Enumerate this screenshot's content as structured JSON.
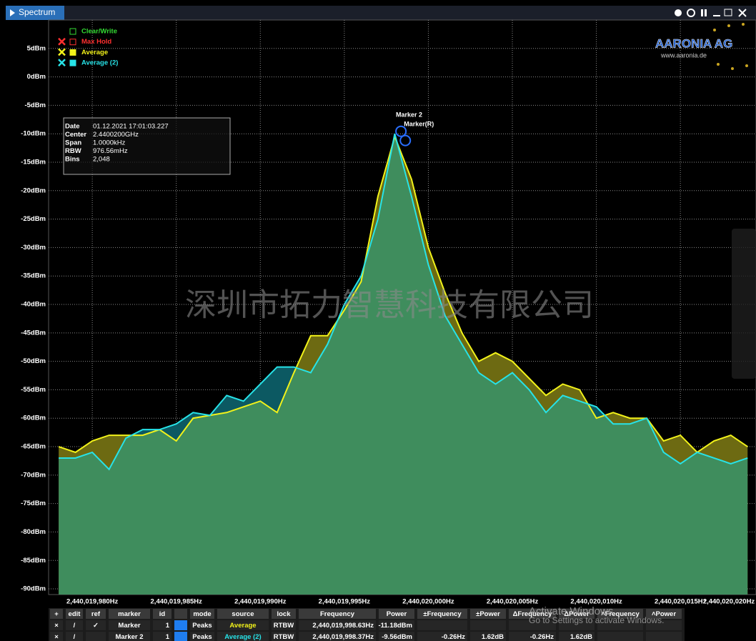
{
  "window_title": "Spectrum",
  "chart_data": {
    "type": "line",
    "x": [
      2440019978,
      2440019979,
      2440019980,
      2440019981,
      2440019982,
      2440019983,
      2440019984,
      2440019985,
      2440019986,
      2440019987,
      2440019988,
      2440019989,
      2440019990,
      2440019991,
      2440019992,
      2440019993,
      2440019994,
      2440019995,
      2440019996,
      2440019997,
      2440019998,
      2440019999,
      2440020000,
      2440020001,
      2440020002,
      2440020003,
      2440020004,
      2440020005,
      2440020006,
      2440020007,
      2440020008,
      2440020009,
      2440020010,
      2440020011,
      2440020012,
      2440020013,
      2440020014,
      2440020015,
      2440020016,
      2440020017,
      2440020018,
      2440020019
    ],
    "series": [
      {
        "name": "Average",
        "color": "#f2f21a",
        "values": [
          -65,
          -66,
          -64,
          -63,
          -63,
          -63,
          -62,
          -64,
          -60,
          -59.5,
          -59,
          -58,
          -57,
          -59,
          -52,
          -45.5,
          -45.5,
          -41,
          -36,
          -21,
          -10.5,
          -18,
          -30,
          -38,
          -45,
          -50,
          -48.5,
          -50,
          -53,
          -56,
          -54,
          -55,
          -60,
          -59,
          -60,
          -60,
          -64,
          -63,
          -66,
          -64,
          -63,
          -65
        ]
      },
      {
        "name": "Average (2)",
        "color": "#27e3e8",
        "values": [
          -67,
          -67,
          -66,
          -69,
          -63.5,
          -62,
          -62,
          -61,
          -59,
          -59.5,
          -56,
          -57,
          -54,
          -51,
          -51,
          -52,
          -47,
          -40,
          -35,
          -25,
          -10,
          -21,
          -33,
          -42,
          -47,
          -52,
          -54,
          -52,
          -55,
          -59,
          -56,
          -57,
          -58,
          -61,
          -61,
          -60,
          -66,
          -68,
          -66,
          -67,
          -68,
          -67
        ]
      }
    ],
    "inactive_traces": [
      {
        "name": "Clear/Write",
        "color": "#33dd33"
      },
      {
        "name": "Max Hold",
        "color": "#ff3030"
      }
    ],
    "xlim": [
      2440019977.4,
      2440020019.5
    ],
    "xticks": [
      {
        "value": 2440019980,
        "label": "2,440,019,980Hz"
      },
      {
        "value": 2440019985,
        "label": "2,440,019,985Hz"
      },
      {
        "value": 2440019990,
        "label": "2,440,019,990Hz"
      },
      {
        "value": 2440019995,
        "label": "2,440,019,995Hz"
      },
      {
        "value": 2440020000,
        "label": "2,440,020,000Hz"
      },
      {
        "value": 2440020005,
        "label": "2,440,020,005Hz"
      },
      {
        "value": 2440020010,
        "label": "2,440,020,010Hz"
      },
      {
        "value": 2440020015,
        "label": "2,440,020,015Hz"
      },
      {
        "value": 2440020020,
        "label": "2,440,020,020Hz"
      }
    ],
    "ylim": [
      -91,
      10
    ],
    "yticks": [
      {
        "value": 5,
        "label": "5dBm"
      },
      {
        "value": 0,
        "label": "0dBm"
      },
      {
        "value": -5,
        "label": "-5dBm"
      },
      {
        "value": -10,
        "label": "-10dBm"
      },
      {
        "value": -15,
        "label": "-15dBm"
      },
      {
        "value": -20,
        "label": "-20dBm"
      },
      {
        "value": -25,
        "label": "-25dBm"
      },
      {
        "value": -30,
        "label": "-30dBm"
      },
      {
        "value": -35,
        "label": "-35dBm"
      },
      {
        "value": -40,
        "label": "-40dBm"
      },
      {
        "value": -45,
        "label": "-45dBm"
      },
      {
        "value": -50,
        "label": "-50dBm"
      },
      {
        "value": -55,
        "label": "-55dBm"
      },
      {
        "value": -60,
        "label": "-60dBm"
      },
      {
        "value": -65,
        "label": "-65dBm"
      },
      {
        "value": -70,
        "label": "-70dBm"
      },
      {
        "value": -75,
        "label": "-75dBm"
      },
      {
        "value": -80,
        "label": "-80dBm"
      },
      {
        "value": -85,
        "label": "-85dBm"
      },
      {
        "value": -90,
        "label": "-90dBm"
      }
    ],
    "grid": true,
    "markers": [
      {
        "label": "Marker 2",
        "x": 2440019998.37,
        "y": -9.56
      },
      {
        "label": "Marker(R)",
        "x": 2440019998.63,
        "y": -11.18
      }
    ],
    "info": [
      [
        "Date",
        "01.12.2021 17:01:03.227"
      ],
      [
        "Center",
        "2.4400200GHz"
      ],
      [
        "Span",
        "1.0000kHz"
      ],
      [
        "RBW",
        "976.56mHz"
      ],
      [
        "Bins",
        "2,048"
      ]
    ]
  },
  "watermark": "深圳市拓力智慧科技有限公司",
  "logo": {
    "name": "AARONIA AG",
    "url": "www.aaronia.de"
  },
  "os_notice": [
    "Activate Windows",
    "Go to Settings to activate Windows."
  ],
  "table": {
    "header": [
      "+",
      "edit",
      "ref",
      "marker",
      "id",
      null,
      "mode",
      "source",
      "lock",
      "Frequency",
      "Power",
      "±Frequency",
      "±Power",
      "ΔFrequency",
      "ΔPower",
      "˄Frequency",
      "˄Power"
    ],
    "rows": [
      [
        "×",
        "/",
        "✓",
        "Marker",
        "1",
        null,
        "Peaks",
        "Average",
        "RTBW",
        "2,440,019,998.63Hz",
        "-11.18dBm",
        null,
        null,
        null,
        null,
        null,
        null
      ],
      [
        "×",
        "/",
        null,
        "Marker 2",
        "1",
        null,
        "Peaks",
        "Average (2)",
        "RTBW",
        "2,440,019,998.37Hz",
        "-9.56dBm",
        "-0.26Hz",
        "1.62dB",
        "-0.26Hz",
        "1.62dB",
        null,
        null
      ]
    ]
  }
}
